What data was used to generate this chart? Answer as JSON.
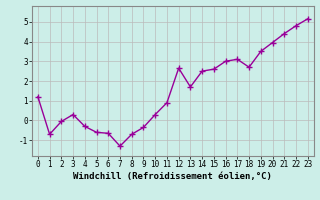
{
  "x": [
    0,
    1,
    2,
    3,
    4,
    5,
    6,
    7,
    8,
    9,
    10,
    11,
    12,
    13,
    14,
    15,
    16,
    17,
    18,
    19,
    20,
    21,
    22,
    23
  ],
  "y": [
    1.2,
    -0.7,
    -0.05,
    0.3,
    -0.3,
    -0.6,
    -0.65,
    -1.3,
    -0.7,
    -0.35,
    0.3,
    0.9,
    2.65,
    1.7,
    2.5,
    2.6,
    3.0,
    3.1,
    2.7,
    3.5,
    3.95,
    4.4,
    4.8,
    5.15
  ],
  "line_color": "#990099",
  "marker": "+",
  "markersize": 4,
  "linewidth": 1.0,
  "markeredgewidth": 1.0,
  "bg_color": "#cceee8",
  "grid_color": "#bbbbbb",
  "xlabel": "Windchill (Refroidissement éolien,°C)",
  "xlabel_fontsize": 6.5,
  "tick_fontsize": 5.5,
  "ylim": [
    -1.8,
    5.8
  ],
  "xlim": [
    -0.5,
    23.5
  ],
  "xticks": [
    0,
    1,
    2,
    3,
    4,
    5,
    6,
    7,
    8,
    9,
    10,
    11,
    12,
    13,
    14,
    15,
    16,
    17,
    18,
    19,
    20,
    21,
    22,
    23
  ],
  "yticks": [
    -1,
    0,
    1,
    2,
    3,
    4,
    5
  ]
}
